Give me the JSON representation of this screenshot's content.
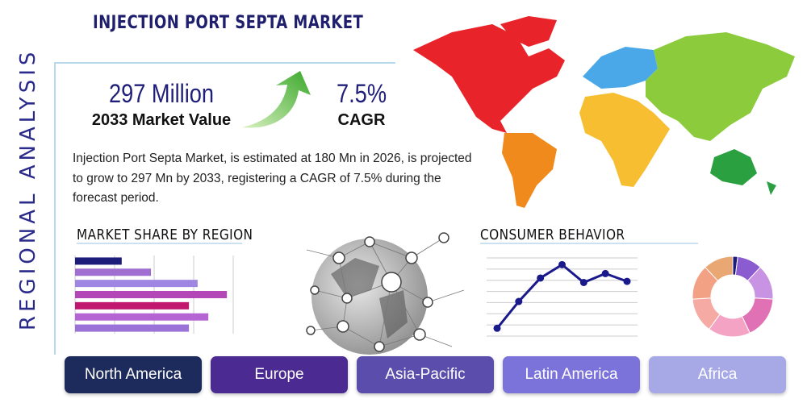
{
  "header": {
    "title": "INJECTION PORT SEPTA MARKET",
    "side_label": "REGIONAL ANALYSIS"
  },
  "stats": [
    {
      "value": "297 Million",
      "label": "2033 Market Value"
    },
    {
      "value": "7.5%",
      "label": "CAGR"
    }
  ],
  "description": "Injection Port Septa Market, is estimated at 180 Mn in 2026, is projected to grow to 297 Mn by 2033, registering a CAGR of 7.5% during the forecast period.",
  "sections": {
    "market_share": "MARKET SHARE BY REGION",
    "consumer_behavior": "CONSUMER BEHAVIOR"
  },
  "chart_data": [
    {
      "type": "bar",
      "horizontal": true,
      "categories": [
        null,
        null,
        null,
        null,
        null,
        null,
        null
      ],
      "values": [
        1.18,
        1.92,
        3.1,
        3.84,
        2.88,
        3.37,
        2.88
      ],
      "colors": [
        "#1c1c7a",
        "#a06ed0",
        "#9f86e2",
        "#b447b8",
        "#c2176e",
        "#b565d3",
        "#9b72d8"
      ],
      "xlim": [
        0,
        4
      ],
      "xticks": [
        0,
        1,
        2,
        3,
        4
      ],
      "grid": true
    },
    {
      "type": "line",
      "categories": [
        null,
        null,
        null,
        null,
        null,
        null,
        null
      ],
      "series": [
        {
          "color": "#1a1a8c",
          "values": [
            0.7,
            3.1,
            5.2,
            6.4,
            4.8,
            5.6,
            4.9
          ]
        }
      ],
      "ylim": [
        0,
        7
      ],
      "yticks": [
        0,
        1,
        2,
        3,
        4,
        5,
        6,
        7
      ],
      "grid": true
    },
    {
      "type": "pie",
      "donut": true,
      "values": [
        2,
        10,
        14,
        17,
        17,
        14,
        14,
        12
      ],
      "colors": [
        "#1c1c7a",
        "#8a5cd0",
        "#c893e2",
        "#e071b4",
        "#f4a3c4",
        "#f6aaa4",
        "#f2a184",
        "#e9a774"
      ]
    }
  ],
  "tabs": [
    "North America",
    "Europe",
    "Asia-Pacific",
    "Latin America",
    "Africa"
  ]
}
